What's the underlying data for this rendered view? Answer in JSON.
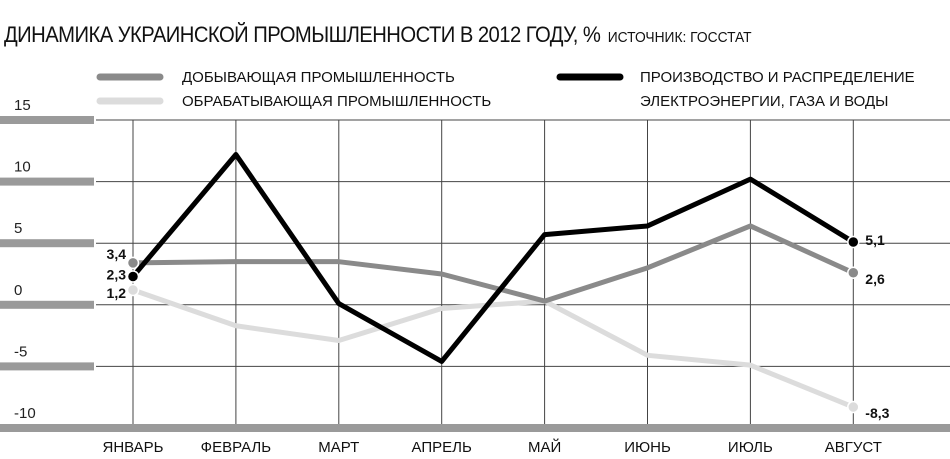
{
  "title": "ДИНАМИКА УКРАИНСКОЙ ПРОМЫШЛЕННОСТИ В 2012 ГОДУ, %",
  "source": "ИСТОЧНИК: ГОССТАТ",
  "chart_data": {
    "type": "line",
    "categories": [
      "ЯНВАРЬ",
      "ФЕВРАЛЬ",
      "МАРТ",
      "АПРЕЛЬ",
      "МАЙ",
      "ИЮНЬ",
      "ИЮЛЬ",
      "АВГУСТ"
    ],
    "ylim": [
      -10,
      15
    ],
    "yticks": [
      "15",
      "10",
      "5",
      "0",
      "-5",
      "-10"
    ],
    "ytick_values": [
      15,
      10,
      5,
      0,
      -5,
      -10
    ],
    "grid": true,
    "legend_position": "top",
    "series": [
      {
        "name": "ДОБЫВАЮЩАЯ ПРОМЫШЛЕННОСТЬ",
        "legend_lines": [
          "ДОБЫВАЮЩАЯ ПРОМЫШЛЕННОСТЬ"
        ],
        "color": "#8a8a8a",
        "values": [
          3.4,
          3.5,
          3.5,
          2.5,
          0.3,
          3.0,
          6.4,
          2.6
        ],
        "labels": {
          "0": "3,4",
          "7": "2,6"
        }
      },
      {
        "name": "ОБРАБАТЫВАЮЩАЯ ПРОМЫШЛЕННОСТЬ",
        "legend_lines": [
          "ОБРАБАТЫВАЮЩАЯ ПРОМЫШЛЕННОСТЬ"
        ],
        "color": "#dcdcdc",
        "values": [
          1.2,
          -1.7,
          -2.9,
          -0.3,
          0.3,
          -4.1,
          -4.9,
          -8.3
        ],
        "labels": {
          "0": "1,2",
          "7": "-8,3"
        }
      },
      {
        "name": "ПРОИЗВОДСТВО И РАСПРЕДЕЛЕНИЕ ЭЛЕКТРОЭНЕРГИИ, ГАЗА И ВОДЫ",
        "legend_lines": [
          "ПРОИЗВОДСТВО И РАСПРЕДЕЛЕНИЕ",
          "ЭЛЕКТРОЭНЕРГИИ, ГАЗА И ВОДЫ"
        ],
        "color": "#000000",
        "values": [
          2.3,
          12.2,
          0.1,
          -4.6,
          5.7,
          6.4,
          10.2,
          5.1
        ],
        "labels": {
          "0": "2,3",
          "7": "5,1"
        }
      }
    ]
  }
}
